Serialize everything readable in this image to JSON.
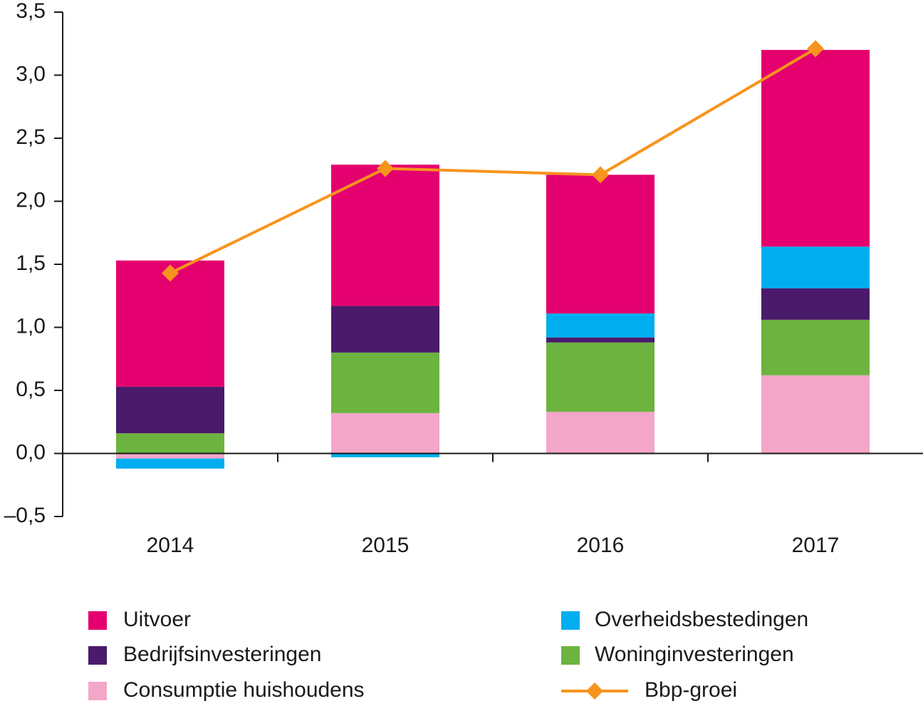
{
  "chart_data": {
    "type": "bar",
    "categories": [
      "2014",
      "2015",
      "2016",
      "2017"
    ],
    "ylim": [
      -0.5,
      3.5
    ],
    "yticks": [
      {
        "value": -0.5,
        "label": "–0,5"
      },
      {
        "value": 0,
        "label": "0,0"
      },
      {
        "value": 0.5,
        "label": "0,5"
      },
      {
        "value": 1,
        "label": "1,0"
      },
      {
        "value": 1.5,
        "label": "1,5"
      },
      {
        "value": 2,
        "label": "2,0"
      },
      {
        "value": 2.5,
        "label": "2,5"
      },
      {
        "value": 3,
        "label": "3,0"
      },
      {
        "value": 3.5,
        "label": "3,5"
      }
    ],
    "stacked": true,
    "series": [
      {
        "name": "Uitvoer",
        "color": "#e4006f",
        "values": [
          1.0,
          1.12,
          1.1,
          1.56
        ]
      },
      {
        "name": "Bedrijfsinvesteringen",
        "color": "#4a1a6b",
        "values": [
          0.37,
          0.37,
          0.04,
          0.25
        ]
      },
      {
        "name": "Consumptie huishoudens",
        "color": "#f4a6c8",
        "values": [
          -0.04,
          0.32,
          0.33,
          0.62
        ]
      },
      {
        "name": "Overheidsbestedingen",
        "color": "#00aeef",
        "values": [
          -0.08,
          -0.03,
          0.19,
          0.33
        ]
      },
      {
        "name": "Woninginvesteringen",
        "color": "#6cb33f",
        "values": [
          0.16,
          0.48,
          0.55,
          0.44
        ]
      },
      {
        "name": "Bbp-groei",
        "color": "#f7941d",
        "type": "line",
        "values": [
          1.43,
          2.26,
          2.21,
          3.21
        ]
      }
    ]
  }
}
